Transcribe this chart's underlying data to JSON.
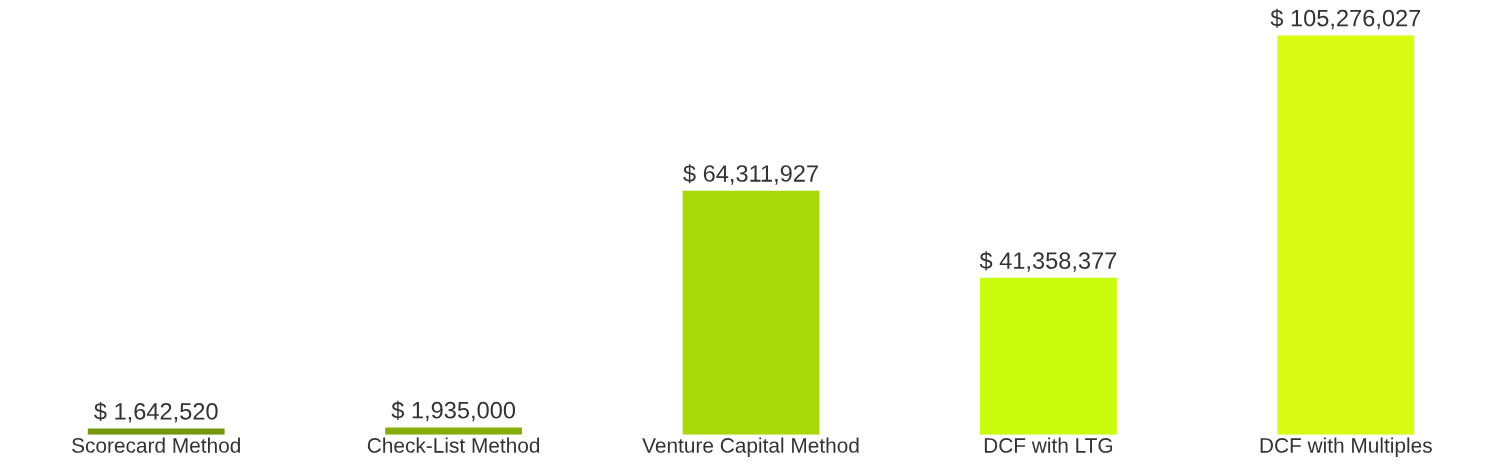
{
  "chart_data": {
    "type": "bar",
    "categories": [
      "Scorecard Method",
      "Check-List Method",
      "Venture Capital Method",
      "DCF with LTG",
      "DCF with Multiples"
    ],
    "values": [
      1642520,
      1935000,
      64311927,
      41358377,
      105276027
    ],
    "value_labels": [
      "$ 1,642,520",
      "$ 1,935,000",
      "$ 64,311,927",
      "$ 41,358,377",
      "$ 105,276,027"
    ],
    "colors": [
      "#74960a",
      "#87ad0a",
      "#a8d80a",
      "#c8fc0c",
      "#d8fc14"
    ],
    "grid": false,
    "legend": false
  }
}
